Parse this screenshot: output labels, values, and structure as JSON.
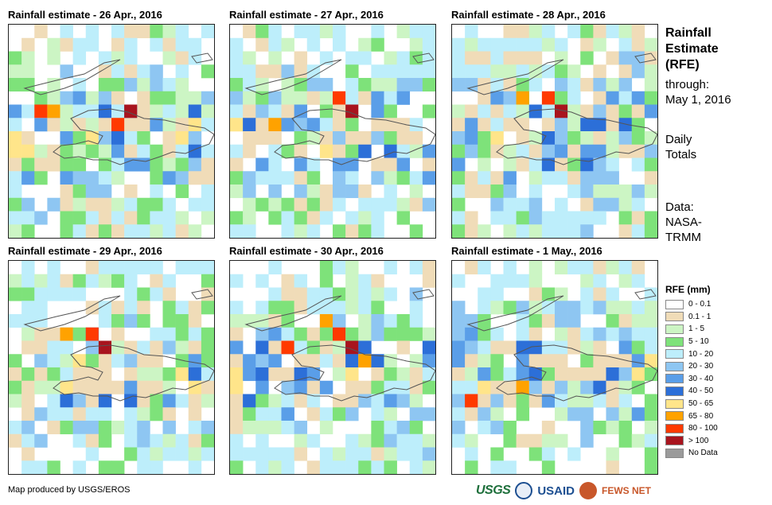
{
  "panels": [
    {
      "title": "Rainfall estimate - 26 Apr., 2016",
      "seed": 11,
      "hot": [
        [
          3,
          6
        ],
        [
          8,
          7
        ],
        [
          9,
          6
        ],
        [
          2,
          6
        ]
      ]
    },
    {
      "title": "Rainfall estimate - 27 Apr., 2016",
      "seed": 23,
      "hot": [
        [
          3,
          7
        ],
        [
          8,
          5
        ],
        [
          9,
          6
        ]
      ]
    },
    {
      "title": "Rainfall estimate - 28 Apr., 2016",
      "seed": 37,
      "hot": [
        [
          5,
          5
        ],
        [
          7,
          5
        ],
        [
          8,
          6
        ]
      ]
    },
    {
      "title": "Rainfall estimate - 29 Apr., 2016",
      "seed": 41,
      "hot": [
        [
          4,
          5
        ],
        [
          6,
          5
        ],
        [
          7,
          6
        ]
      ]
    },
    {
      "title": "Rainfall estimate - 30 Apr., 2016",
      "seed": 53,
      "hot": [
        [
          7,
          4
        ],
        [
          8,
          5
        ],
        [
          9,
          6
        ],
        [
          4,
          6
        ],
        [
          10,
          7
        ]
      ]
    },
    {
      "title": "Rainfall estimate - 1 May., 2016",
      "seed": 67,
      "hot": [
        [
          5,
          9
        ],
        [
          1,
          10
        ]
      ]
    }
  ],
  "sidebar": {
    "title_lines": [
      "Rainfall",
      "Estimate",
      "(RFE)"
    ],
    "through_lines": [
      "through:",
      "May 1, 2016"
    ],
    "totals_lines": [
      "Daily",
      "Totals"
    ],
    "data_lines": [
      "Data:",
      "NASA-",
      "TRMM"
    ]
  },
  "legend": {
    "title": "RFE (mm)",
    "items": [
      {
        "label": "0 - 0.1",
        "color": "#ffffff"
      },
      {
        "label": "0.1 - 1",
        "color": "#f0dcb8"
      },
      {
        "label": "1 - 5",
        "color": "#ccf5c4"
      },
      {
        "label": "5 - 10",
        "color": "#7ee27a"
      },
      {
        "label": "10 - 20",
        "color": "#bdeefb"
      },
      {
        "label": "20 - 30",
        "color": "#8ec6f2"
      },
      {
        "label": "30 - 40",
        "color": "#5a9ee8"
      },
      {
        "label": "40 - 50",
        "color": "#2c6fd8"
      },
      {
        "label": "50 - 65",
        "color": "#ffe58a"
      },
      {
        "label": "65 - 80",
        "color": "#ffa200"
      },
      {
        "label": "80 - 100",
        "color": "#ff3a00"
      },
      {
        "label": "> 100",
        "color": "#a8141e"
      },
      {
        "label": "No Data",
        "color": "#9a9a9a"
      }
    ]
  },
  "credit": "Map produced by USGS/EROS",
  "logos": {
    "usgs": "USGS",
    "usaid": "USAID",
    "fewsnet": "FEWS NET"
  }
}
